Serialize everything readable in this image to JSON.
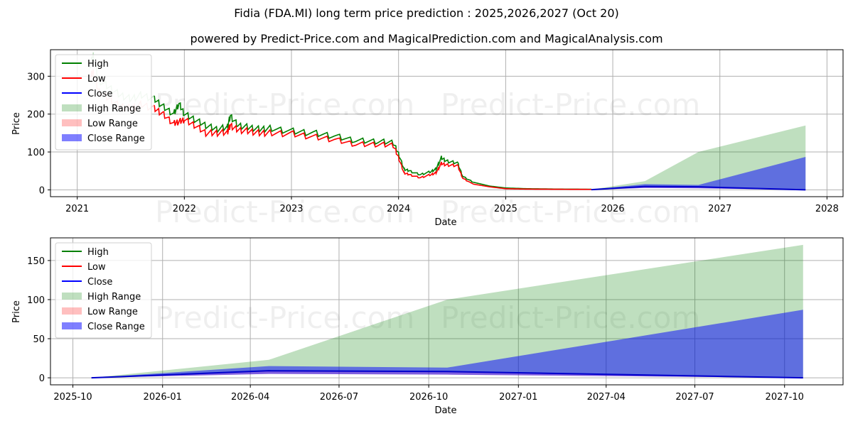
{
  "header": {
    "title": "Fidia (FDA.MI) long term price prediction : 2025,2026,2027 (Oct 20)",
    "subtitle": "powered by Predict-Price.com and MagicalPrediction.com and MagicalAnalysis.com"
  },
  "watermark": "Predict-Price.com",
  "legend": {
    "items": [
      {
        "label": "High",
        "type": "line",
        "color": "#008000"
      },
      {
        "label": "Low",
        "type": "line",
        "color": "#ff0000"
      },
      {
        "label": "Close",
        "type": "line",
        "color": "#0000ff"
      },
      {
        "label": "High Range",
        "type": "patch",
        "color": "#008000",
        "alpha": 0.25
      },
      {
        "label": "Low Range",
        "type": "patch",
        "color": "#ff0000",
        "alpha": 0.25
      },
      {
        "label": "Close Range",
        "type": "patch",
        "color": "#0000ff",
        "alpha": 0.5
      }
    ]
  },
  "chart_data": [
    {
      "type": "line",
      "title": "Fidia (FDA.MI) long term price prediction : 2025,2026,2027 (Oct 20)",
      "xlabel": "Date",
      "ylabel": "Price",
      "xticks": [
        "2021",
        "2022",
        "2023",
        "2024",
        "2025",
        "2026",
        "2027",
        "2028"
      ],
      "yticks": [
        0,
        100,
        200,
        300
      ],
      "xlim": [
        2020.75,
        2028.15
      ],
      "ylim": [
        -18,
        370
      ],
      "grid": true,
      "legend_position": "upper left",
      "history": {
        "x": [
          2021.12,
          2021.15,
          2021.2,
          2021.3,
          2021.4,
          2021.5,
          2021.6,
          2021.72,
          2021.8,
          2021.9,
          2021.95,
          2022.0,
          2022.1,
          2022.2,
          2022.3,
          2022.4,
          2022.43,
          2022.5,
          2022.6,
          2022.7,
          2022.8,
          2023.0,
          2023.2,
          2023.4,
          2023.6,
          2023.8,
          2023.95,
          2024.0,
          2024.05,
          2024.1,
          2024.2,
          2024.3,
          2024.35,
          2024.4,
          2024.45,
          2024.55,
          2024.6,
          2024.7,
          2024.85,
          2025.0,
          2025.2,
          2025.5,
          2025.8
        ],
        "high": [
          330,
          355,
          290,
          270,
          250,
          240,
          250,
          240,
          220,
          200,
          228,
          200,
          185,
          170,
          160,
          165,
          195,
          170,
          165,
          160,
          162,
          155,
          150,
          142,
          130,
          128,
          125,
          95,
          55,
          50,
          40,
          48,
          55,
          85,
          75,
          72,
          35,
          20,
          10,
          5,
          3,
          2,
          1.5
        ],
        "low": [
          300,
          310,
          260,
          240,
          220,
          215,
          225,
          215,
          200,
          175,
          180,
          185,
          170,
          150,
          150,
          152,
          170,
          158,
          155,
          150,
          150,
          148,
          140,
          133,
          120,
          120,
          118,
          85,
          45,
          40,
          32,
          40,
          45,
          70,
          65,
          65,
          30,
          15,
          8,
          3,
          2,
          1.5,
          1.2
        ],
        "faded_until": 2021.72
      },
      "prediction": {
        "x": [
          2025.8,
          2026.3,
          2026.8,
          2027.8
        ],
        "high_range_top": [
          1,
          23,
          100,
          170
        ],
        "close_range_top": [
          1,
          15,
          13,
          87
        ],
        "close": [
          0.5,
          9,
          8,
          0
        ],
        "low_range_bottom": [
          0,
          5,
          4,
          0
        ]
      }
    },
    {
      "type": "area",
      "title": "",
      "xlabel": "Date",
      "ylabel": "Price",
      "xticks": [
        "2025-10",
        "2026-01",
        "2026-04",
        "2026-07",
        "2026-10",
        "2027-01",
        "2027-04",
        "2027-07",
        "2027-10"
      ],
      "yticks": [
        0,
        50,
        100,
        150
      ],
      "ylim": [
        -9,
        179
      ],
      "grid": true,
      "legend_position": "upper left",
      "x": [
        "2025-10-20",
        "2026-04-20",
        "2026-10-20",
        "2027-10-20"
      ],
      "series": [
        {
          "name": "High Range",
          "values": [
            0,
            23,
            100,
            170
          ]
        },
        {
          "name": "Close Range (upper)",
          "values": [
            0,
            15,
            13,
            87
          ]
        },
        {
          "name": "Close",
          "values": [
            0,
            9,
            8,
            0
          ]
        },
        {
          "name": "Low Range (lower)",
          "values": [
            0,
            5,
            4,
            0
          ]
        }
      ]
    }
  ]
}
